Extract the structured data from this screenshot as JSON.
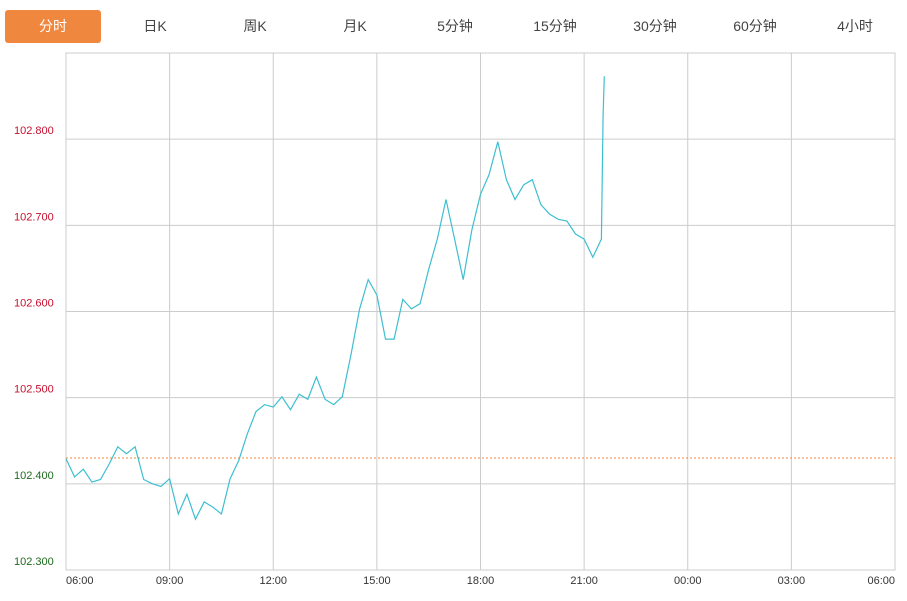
{
  "tabs": [
    "分时",
    "日K",
    "周K",
    "月K",
    "5分钟",
    "15分钟",
    "30分钟",
    "60分钟",
    "4小时"
  ],
  "active_tab": 0,
  "chart_data": {
    "type": "line",
    "x": [
      "06:00",
      "06:15",
      "06:30",
      "06:45",
      "07:00",
      "07:15",
      "07:30",
      "07:45",
      "08:00",
      "08:15",
      "08:30",
      "08:45",
      "09:00",
      "09:15",
      "09:30",
      "09:45",
      "10:00",
      "10:15",
      "10:30",
      "10:45",
      "11:00",
      "11:15",
      "11:30",
      "11:45",
      "12:00",
      "12:15",
      "12:30",
      "12:45",
      "13:00",
      "13:15",
      "13:30",
      "13:45",
      "14:00",
      "14:15",
      "14:30",
      "14:45",
      "15:00",
      "15:15",
      "15:30",
      "15:45",
      "16:00",
      "16:15",
      "16:30",
      "16:45",
      "17:00",
      "17:15",
      "17:30",
      "17:45",
      "18:00",
      "18:15",
      "18:30",
      "18:45",
      "19:00",
      "19:15",
      "19:30",
      "19:45",
      "20:00",
      "20:15",
      "20:30",
      "20:45",
      "21:00",
      "21:15",
      "21:30",
      "21:33",
      "21:35"
    ],
    "series": [
      {
        "color": "#3dbfd0",
        "values": [
          102.429,
          102.408,
          102.417,
          102.402,
          102.405,
          102.423,
          102.443,
          102.435,
          102.443,
          102.405,
          102.4,
          102.397,
          102.406,
          102.365,
          102.388,
          102.359,
          102.379,
          102.373,
          102.365,
          102.406,
          102.427,
          102.458,
          102.484,
          102.492,
          102.489,
          102.501,
          102.486,
          102.504,
          102.498,
          102.524,
          102.498,
          102.492,
          102.501,
          102.55,
          102.603,
          102.637,
          102.619,
          102.568,
          102.568,
          102.614,
          102.603,
          102.609,
          102.649,
          102.684,
          102.73,
          102.684,
          102.637,
          102.695,
          102.736,
          102.759,
          102.797,
          102.753,
          102.73,
          102.747,
          102.753,
          102.724,
          102.713,
          102.707,
          102.705,
          102.69,
          102.684,
          102.663,
          102.684,
          102.828,
          102.873
        ]
      }
    ],
    "reference_line": {
      "value": 102.43,
      "color": "#f0873f"
    },
    "up_color": "#c8102e",
    "down_color": "#1d6b1d",
    "ylim": [
      102.3,
      102.9
    ],
    "yticks": [
      {
        "value": 102.3,
        "label": "102.300"
      },
      {
        "value": 102.4,
        "label": "102.400"
      },
      {
        "value": 102.5,
        "label": "102.500"
      },
      {
        "value": 102.6,
        "label": "102.600"
      },
      {
        "value": 102.7,
        "label": "102.700"
      },
      {
        "value": 102.8,
        "label": "102.800"
      }
    ],
    "xticks": [
      "06:00",
      "09:00",
      "12:00",
      "15:00",
      "18:00",
      "21:00",
      "00:00",
      "03:00",
      "06:00"
    ],
    "grid": true
  }
}
